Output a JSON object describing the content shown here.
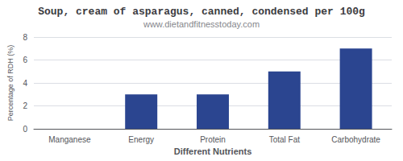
{
  "chart_data": {
    "type": "bar",
    "title": "Soup, cream of asparagus, canned, condensed per 100g",
    "subtitle": "www.dietandfitnesstoday.com",
    "xlabel": "Different Nutrients",
    "ylabel": "Percentage of RDH (%)",
    "categories": [
      "Manganese",
      "Energy",
      "Protein",
      "Total Fat",
      "Carbohydrate"
    ],
    "values": [
      0.0,
      3.0,
      3.0,
      5.0,
      7.0
    ],
    "color": "#2b4590",
    "ylim": [
      0,
      8
    ],
    "yticks": [
      0,
      2,
      4,
      6,
      8
    ],
    "grid": true
  }
}
